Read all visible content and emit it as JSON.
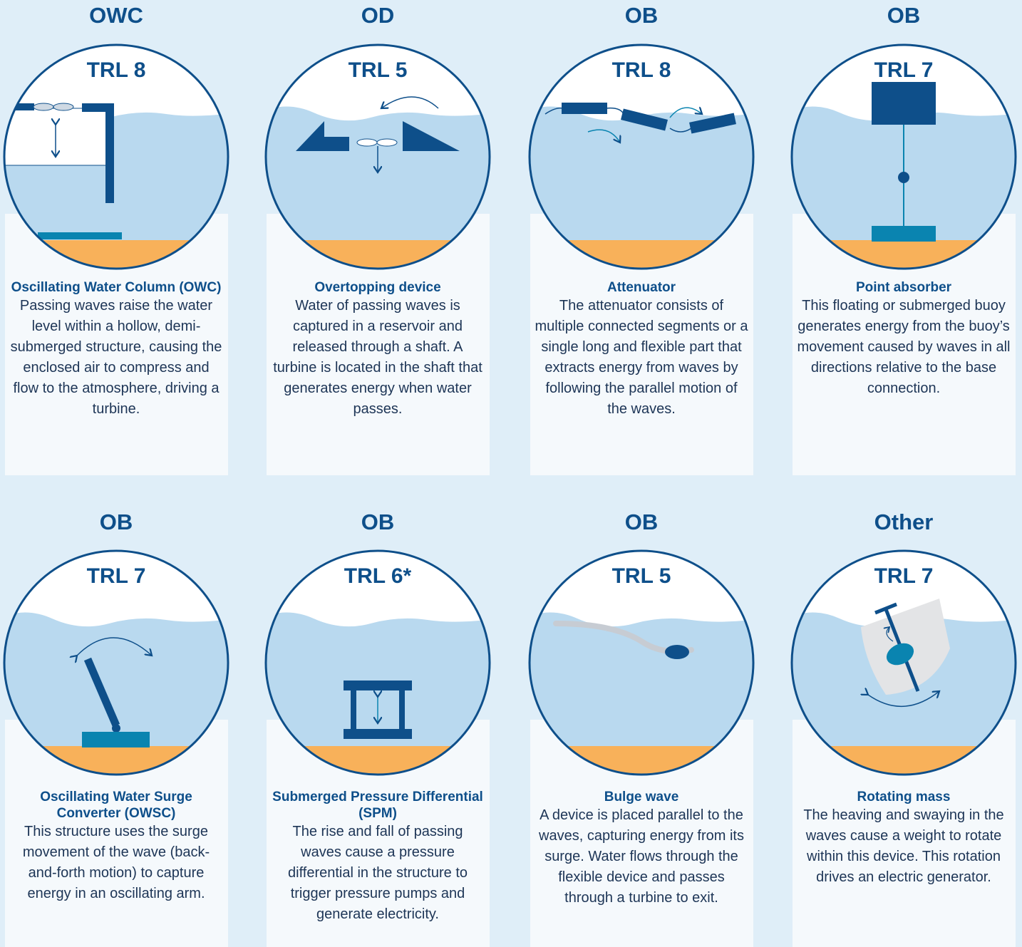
{
  "cards": [
    {
      "category": "OWC",
      "trl": "TRL 8",
      "name": "Oscillating Water Column (OWC)",
      "description": "Passing waves raise the water level within a hollow, demi-submerged structure, causing the enclosed air to compress and flow to the atmosphere, driving a turbine."
    },
    {
      "category": "OD",
      "trl": "TRL 5",
      "name": "Overtopping device",
      "description": "Water of passing waves is captured in a reservoir and released through a shaft. A turbine is located in the shaft that generates energy when water passes."
    },
    {
      "category": "OB",
      "trl": "TRL 8",
      "name": "Attenuator",
      "description": "The attenuator consists of multiple connected segments or a single long and flexible part that extracts energy from waves by following the parallel motion of the waves."
    },
    {
      "category": "OB",
      "trl": "TRL 7",
      "name": "Point absorber",
      "description": "This floating or submerged buoy generates energy from the buoy’s movement caused by waves in all directions relative to the base connection."
    },
    {
      "category": "OB",
      "trl": "TRL 7",
      "name": "Oscillating Water Surge Converter (OWSC)",
      "description": "This structure uses the surge movement of the wave (back-and-forth motion) to capture energy in an oscillating arm."
    },
    {
      "category": "OB",
      "trl": "TRL 6*",
      "name": "Submerged Pressure Differential (SPM)",
      "description": "The rise and fall of passing waves cause a pressure differential in the structure to trigger pressure pumps and generate electricity."
    },
    {
      "category": "OB",
      "trl": "TRL 5",
      "name": "Bulge wave",
      "description": "A device is placed parallel to the waves, capturing energy from its surge. Water flows through the flexible device and passes through a turbine to exit."
    },
    {
      "category": "Other",
      "trl": "TRL 7",
      "name": "Rotating mass",
      "description": "The heaving and swaying in the waves cause a weight to rotate within this device. This rotation drives an electric generator."
    }
  ]
}
